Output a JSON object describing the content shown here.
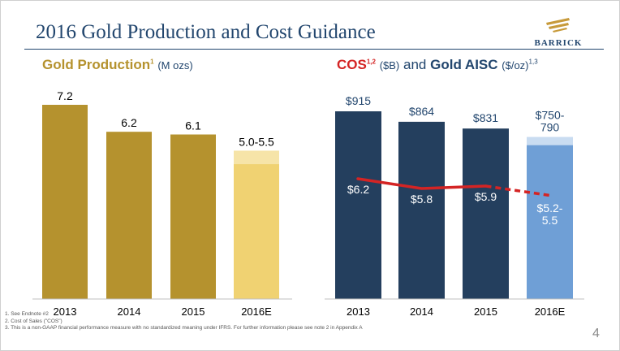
{
  "slide": {
    "title": "2016 Gold Production and Cost Guidance",
    "logo_text": "BARRICK",
    "page_number": "4"
  },
  "left_heading": {
    "title": "Gold Production",
    "sup": "1",
    "unit": "(M ozs)"
  },
  "right_heading": {
    "cos": "COS",
    "cos_sup": "1,2",
    "cos_unit": "($B)",
    "and": "and",
    "aisc": "Gold AISC",
    "aisc_unit": "($/oz)",
    "aisc_sup": "1,3"
  },
  "footnotes": [
    "1.   See Endnote #2",
    "2.   Cost of Sales (\"COS\")",
    "3.   This is a non-GAAP financial performance measure with no standardized meaning under IFRS. For further information please see note 2 in Appendix A"
  ],
  "colors": {
    "gold_bar": "#b5922e",
    "gold_guidance": "#f0d272",
    "navy_bar": "#243f5e",
    "blue_guidance": "#6f9fd6",
    "blue_range": "#c9dcf1",
    "cos_line": "#d42424"
  },
  "chart_data": [
    {
      "type": "bar",
      "categories": [
        "2013",
        "2014",
        "2015",
        "2016E"
      ],
      "values": [
        7.2,
        6.2,
        6.1,
        5.5
      ],
      "range_low": [
        null,
        null,
        null,
        5.0
      ],
      "labels": [
        "7.2",
        "6.2",
        "6.1",
        "5.0-5.5"
      ],
      "title": "Gold Production",
      "ylabel": "(M ozs)",
      "ylim": [
        0,
        7.2
      ]
    },
    {
      "type": "bar",
      "categories": [
        "2013",
        "2014",
        "2015",
        "2016E"
      ],
      "series": [
        {
          "name": "Gold AISC",
          "type": "bar",
          "values": [
            915,
            864,
            831,
            790
          ],
          "range_low": [
            null,
            null,
            null,
            750
          ],
          "labels": [
            "$915",
            "$864",
            "$831",
            "$750-\n790"
          ]
        },
        {
          "name": "COS",
          "type": "line",
          "values": [
            6.2,
            5.8,
            5.9,
            5.5
          ],
          "labels": [
            "$6.2",
            "$5.8",
            "$5.9",
            "$5.2-\n5.5"
          ],
          "dashed_from_index": 2
        }
      ],
      "title": "COS ($B) and Gold AISC ($/oz)",
      "ylim": [
        0,
        915
      ]
    }
  ]
}
